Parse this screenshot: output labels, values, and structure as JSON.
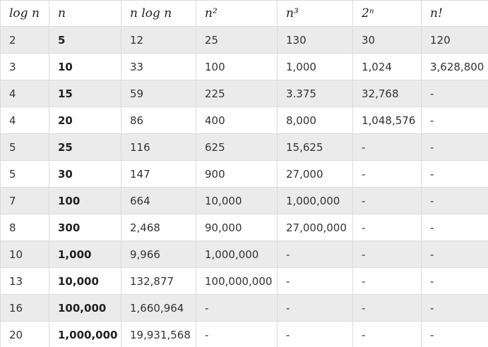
{
  "headers": [
    "log n",
    "n",
    "n log n",
    "n²",
    "n³",
    "2ⁿ",
    "n!"
  ],
  "rows": [
    [
      "2",
      "5",
      "12",
      "25",
      "130",
      "30",
      "120"
    ],
    [
      "3",
      "10",
      "33",
      "100",
      "1,000",
      "1,024",
      "3,628,800"
    ],
    [
      "4",
      "15",
      "59",
      "225",
      "3.375",
      "32,768",
      "-"
    ],
    [
      "4",
      "20",
      "86",
      "400",
      "8,000",
      "1,048,576",
      "-"
    ],
    [
      "5",
      "25",
      "116",
      "625",
      "15,625",
      "-",
      "-"
    ],
    [
      "5",
      "30",
      "147",
      "900",
      "27,000",
      "-",
      "-"
    ],
    [
      "7",
      "100",
      "664",
      "10,000",
      "1,000,000",
      "-",
      "-"
    ],
    [
      "8",
      "300",
      "2,468",
      "90,000",
      "27,000,000",
      "-",
      "-"
    ],
    [
      "10",
      "1,000",
      "9,966",
      "1,000,000",
      "-",
      "-",
      "-"
    ],
    [
      "13",
      "10,000",
      "132,877",
      "100,000,000",
      "-",
      "-",
      "-"
    ],
    [
      "16",
      "100,000",
      "1,660,964",
      "-",
      "-",
      "-",
      "-"
    ],
    [
      "20",
      "1,000,000",
      "19,931,568",
      "-",
      "-",
      "-",
      "-"
    ]
  ]
}
